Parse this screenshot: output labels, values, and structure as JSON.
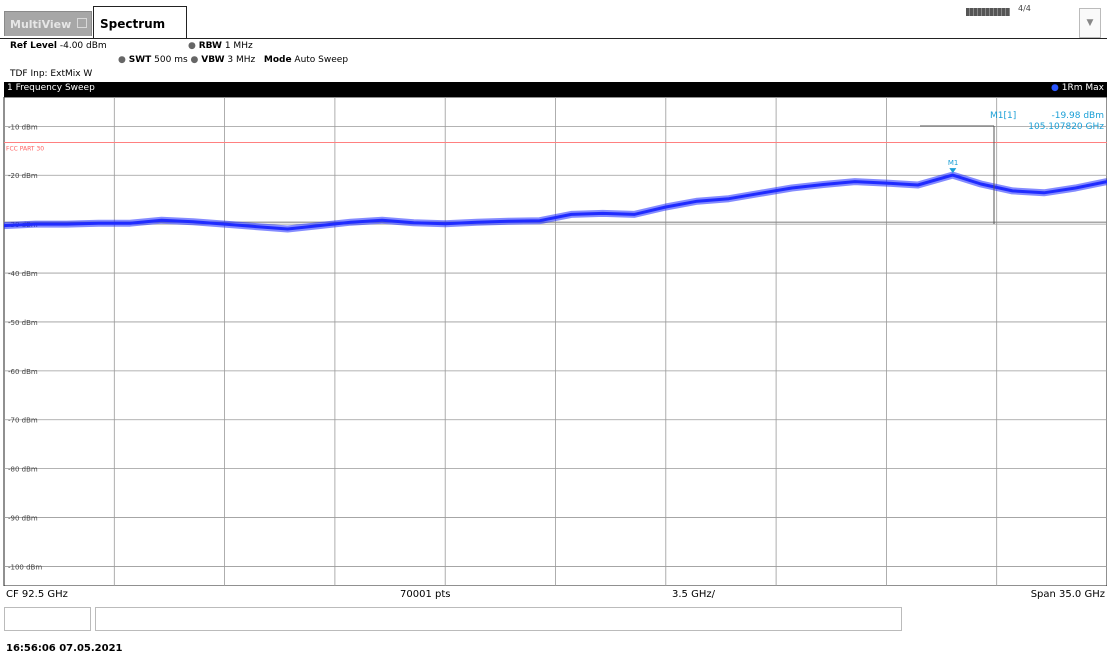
{
  "tabs": {
    "multiview": "MultiView",
    "spectrum": "Spectrum"
  },
  "dropdown_icon": "chevron-down-icon",
  "settings": {
    "ref_level_label": "Ref Level",
    "ref_level_value": "-4.00 dBm",
    "swt_label": "SWT",
    "swt_value": "500 ms",
    "rbw_label": "RBW",
    "rbw_value": "1 MHz",
    "vbw_label": "VBW",
    "vbw_value": "3 MHz",
    "mode_label": "Mode",
    "mode_value": "Auto Sweep",
    "tdf": "TDF Inp: ExtMix W"
  },
  "window": {
    "title": "1 Frequency Sweep",
    "trace_label": "1Rm Max"
  },
  "marker": {
    "name": "M1[1]",
    "level": "-19.98 dBm",
    "freq": "105.107820 GHz",
    "plot_label": "M1"
  },
  "limit_line_label": "FCC PART 30",
  "footer": {
    "cf": "CF 92.5 GHz",
    "points": "70001 pts",
    "div": "3.5 GHz/",
    "span": "Span 35.0 GHz"
  },
  "status": {
    "indicator": "▮▮▮▮▮▮ 4/4"
  },
  "timestamp": "16:56:06  07.05.2021",
  "colors": {
    "trace": "#1f2bff",
    "limit_line": "#ff8080",
    "marker": "#1a9fd6",
    "grid": "#9a9a9a",
    "titlebar": "#000000"
  },
  "chart_data": {
    "type": "line",
    "title": "1 Frequency Sweep",
    "xlabel": "",
    "ylabel": "",
    "x_unit": "GHz",
    "y_unit": "dBm",
    "xlim": [
      75.0,
      110.0
    ],
    "ylim": [
      -104,
      -4
    ],
    "y_ticks": [
      -10,
      -20,
      -30,
      -40,
      -50,
      -60,
      -70,
      -80,
      -90,
      -100
    ],
    "y_tick_labels": [
      "-10 dBm",
      "-20 dBm",
      "-30 dBm",
      "-40 dBm",
      "-50 dBm",
      "-60 dBm",
      "-70 dBm",
      "-80 dBm",
      "-90 dBm",
      "-100 dBm"
    ],
    "grid": true,
    "limit_line": {
      "name": "FCC PART 30",
      "y": -13.3
    },
    "reference_line": {
      "y": -29.6
    },
    "marker": {
      "x": 105.10782,
      "y": -19.98
    },
    "series": [
      {
        "name": "1Rm Max",
        "x": [
          75.0,
          76.0,
          77.0,
          78.0,
          79.0,
          80.0,
          81.0,
          82.0,
          83.0,
          84.0,
          85.0,
          86.0,
          87.0,
          88.0,
          89.0,
          90.0,
          91.0,
          92.0,
          93.0,
          94.0,
          95.0,
          96.0,
          97.0,
          98.0,
          99.0,
          100.0,
          101.0,
          102.0,
          103.0,
          104.0,
          105.1,
          106.0,
          107.0,
          108.0,
          109.0,
          110.0
        ],
        "y": [
          -30.3,
          -30.0,
          -30.0,
          -29.8,
          -29.8,
          -29.2,
          -29.5,
          -30.0,
          -30.5,
          -31.0,
          -30.3,
          -29.6,
          -29.2,
          -29.7,
          -29.9,
          -29.6,
          -29.4,
          -29.3,
          -28.0,
          -27.8,
          -28.0,
          -26.5,
          -25.3,
          -24.8,
          -23.7,
          -22.6,
          -21.9,
          -21.3,
          -21.6,
          -22.0,
          -19.98,
          -21.8,
          -23.2,
          -23.6,
          -22.6,
          -21.3
        ]
      }
    ]
  }
}
